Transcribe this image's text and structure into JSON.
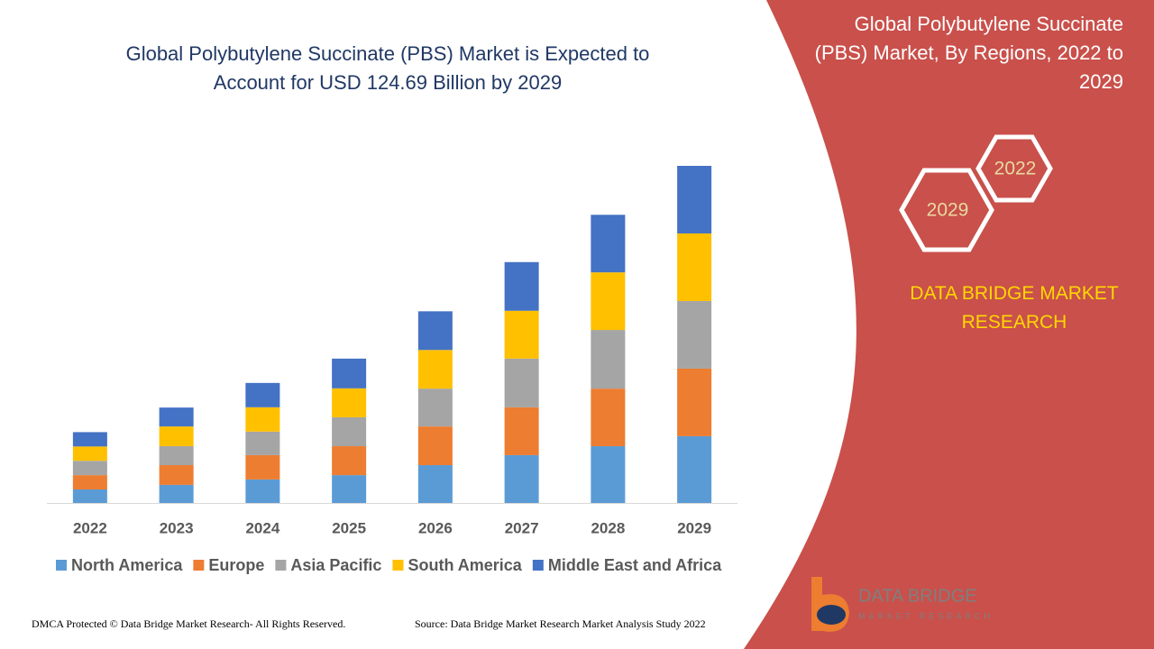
{
  "chart_data": {
    "type": "bar",
    "stacked": true,
    "title": "Global Polybutylene Succinate (PBS) Market is Expected to Account for USD 124.69 Billion by 2029",
    "categories": [
      "2022",
      "2023",
      "2024",
      "2025",
      "2026",
      "2027",
      "2028",
      "2029"
    ],
    "series": [
      {
        "name": "North America",
        "color": "#5b9bd5",
        "values": [
          5.0,
          6.7,
          8.7,
          10.3,
          14.0,
          17.7,
          21.0,
          24.7
        ]
      },
      {
        "name": "Europe",
        "color": "#ed7d31",
        "values": [
          5.3,
          7.3,
          9.0,
          10.7,
          14.3,
          17.7,
          21.3,
          25.0
        ]
      },
      {
        "name": "Asia Pacific",
        "color": "#a5a5a5",
        "values": [
          5.3,
          7.0,
          8.7,
          10.7,
          14.0,
          18.0,
          21.7,
          25.0
        ]
      },
      {
        "name": "South America",
        "color": "#ffc000",
        "values": [
          5.3,
          7.3,
          9.0,
          10.7,
          14.3,
          17.7,
          21.3,
          25.0
        ]
      },
      {
        "name": "Middle East and Africa",
        "color": "#4472c4",
        "values": [
          5.3,
          7.0,
          9.0,
          11.0,
          14.3,
          18.0,
          21.3,
          25.0
        ]
      }
    ],
    "legend": "bottom"
  },
  "panel": {
    "title": "Global Polybutylene Succinate (PBS) Market, By Regions, 2022 to 2029",
    "hex_labels": [
      "2022",
      "2029"
    ],
    "brand": "DATA BRIDGE MARKET RESEARCH"
  },
  "logo": {
    "name": "DATA BRIDGE",
    "tagline": "MARKET RESEARCH"
  },
  "footer": {
    "left": "DMCA Protected © Data Bridge Market Research- All Rights Reserved.",
    "right": "Source: Data Bridge Market Research Market Analysis Study 2022"
  }
}
